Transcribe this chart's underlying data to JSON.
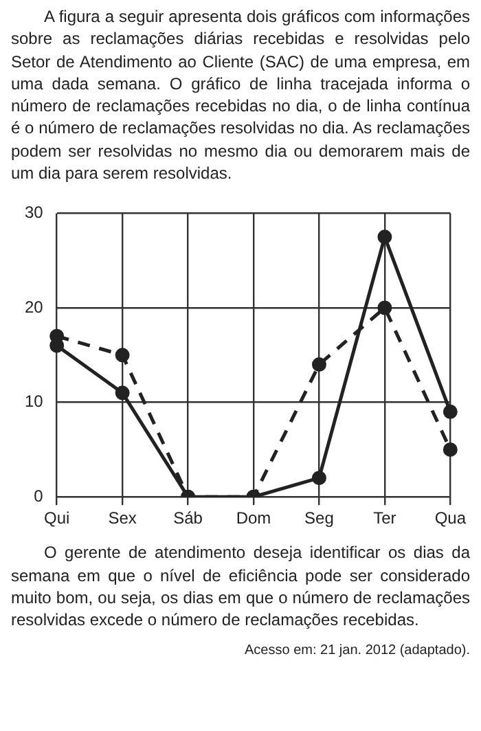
{
  "chart_data": {
    "type": "line",
    "title": "A figura a seguir apresenta dois gráficos com informações sobre as reclamações diárias recebidas e resolvidas pelo Setor de Atendimento ao Cliente (SAC) de uma empresa, em uma dada semana. O gráfico de linha tracejada informa o número de reclamações recebidas no dia, o de linha contínua é o número de reclamações resolvidas no dia. As reclamações podem ser resolvidas no mesmo dia ou demorarem mais de um dia para serem resolvidas.",
    "categories": [
      "Qui",
      "Sex",
      "Sáb",
      "Dom",
      "Seg",
      "Ter",
      "Qua"
    ],
    "series": [
      {
        "color": "#222222",
        "line_style": "dashed",
        "values": [
          17,
          15,
          0,
          0,
          14,
          20,
          5
        ]
      },
      {
        "color": "#222222",
        "line_style": "solid",
        "values": [
          16,
          11,
          0,
          0,
          2,
          27.5,
          9
        ]
      }
    ],
    "ylim": [
      0,
      30
    ],
    "yticks": [
      0,
      10,
      20,
      30
    ],
    "grid": true,
    "legend": false,
    "marker": "circle",
    "annotations": [
      "O gerente de atendimento deseja identificar os dias da semana em que o nível de eficiência pode ser considerado muito bom, ou seja, os dias em que o número de reclamações resolvidas excede o número de reclamações recebidas.",
      "Acesso em: 21 jan. 2012 (adaptado)."
    ]
  }
}
